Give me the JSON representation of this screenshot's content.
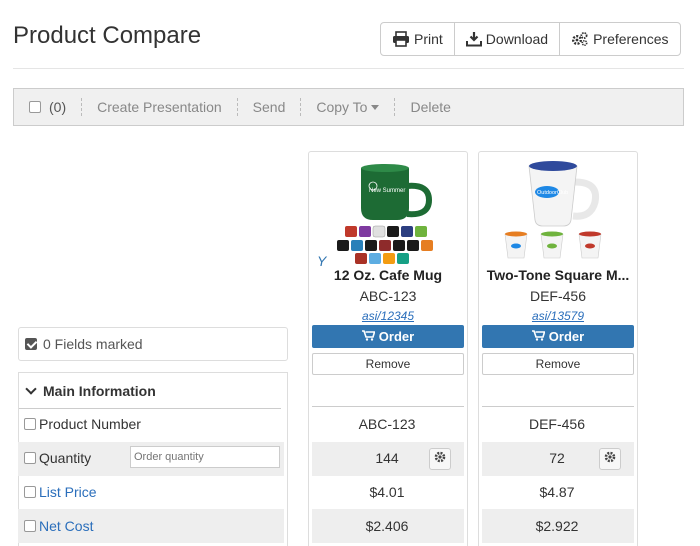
{
  "page": {
    "title": "Product Compare"
  },
  "header_buttons": {
    "print": "Print",
    "download": "Download",
    "preferences": "Preferences"
  },
  "toolbar": {
    "selected_count": "(0)",
    "create_presentation": "Create Presentation",
    "send": "Send",
    "copy_to": "Copy To",
    "delete": "Delete"
  },
  "sidebar": {
    "fields_marked": "0 Fields marked",
    "section_title": "Main Information"
  },
  "fields": {
    "product_number": "Product Number",
    "quantity": "Quantity",
    "quantity_placeholder": "Order quantity",
    "list_price": "List Price",
    "net_cost": "Net Cost"
  },
  "products": [
    {
      "name": "12 Oz. Cafe Mug",
      "number": "ABC-123",
      "asi": "asi/12345",
      "order_label": "Order",
      "remove_label": "Remove",
      "quantity": "144",
      "list_price": "$4.01",
      "net_cost": "$2.406",
      "mug_color": "#1d6b34"
    },
    {
      "name": "Two-Tone Square M...",
      "number": "DEF-456",
      "asi": "asi/13579",
      "order_label": "Order",
      "remove_label": "Remove",
      "quantity": "72",
      "list_price": "$4.87",
      "net_cost": "$2.922",
      "mug_color": "#f2f2f2"
    }
  ],
  "colors": {
    "accent": "#3276b1",
    "link": "#2a6ebb"
  }
}
